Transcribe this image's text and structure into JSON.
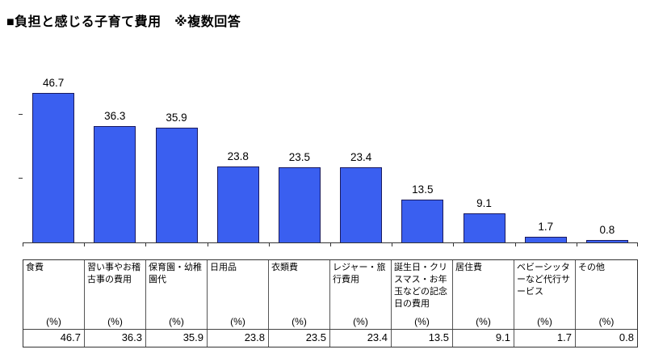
{
  "title": "■負担と感じる子育て費用　※複数回答",
  "chart_data": {
    "type": "bar",
    "title": "負担と感じる子育て費用",
    "note": "※複数回答",
    "categories": [
      "食費",
      "習い事やお稽古事の費用",
      "保育園・幼稚園代",
      "日用品",
      "衣類費",
      "レジャー・旅行費用",
      "誕生日・クリスマス・お年玉などの記念日の費用",
      "居住費",
      "ベビーシッターなど代行サービス",
      "その他"
    ],
    "values": [
      46.7,
      36.3,
      35.9,
      23.8,
      23.5,
      23.4,
      13.5,
      9.1,
      1.7,
      0.8
    ],
    "unit_label": "(%)",
    "ylabel": "",
    "xlabel": "",
    "ylim": [
      0,
      50
    ],
    "yticks": [
      20,
      40
    ],
    "grid": false,
    "legend": "none",
    "bar_color": "#3a5ff0",
    "bar_border_color": "#1a1a5e"
  },
  "table": {
    "percent_label": "(%)"
  }
}
